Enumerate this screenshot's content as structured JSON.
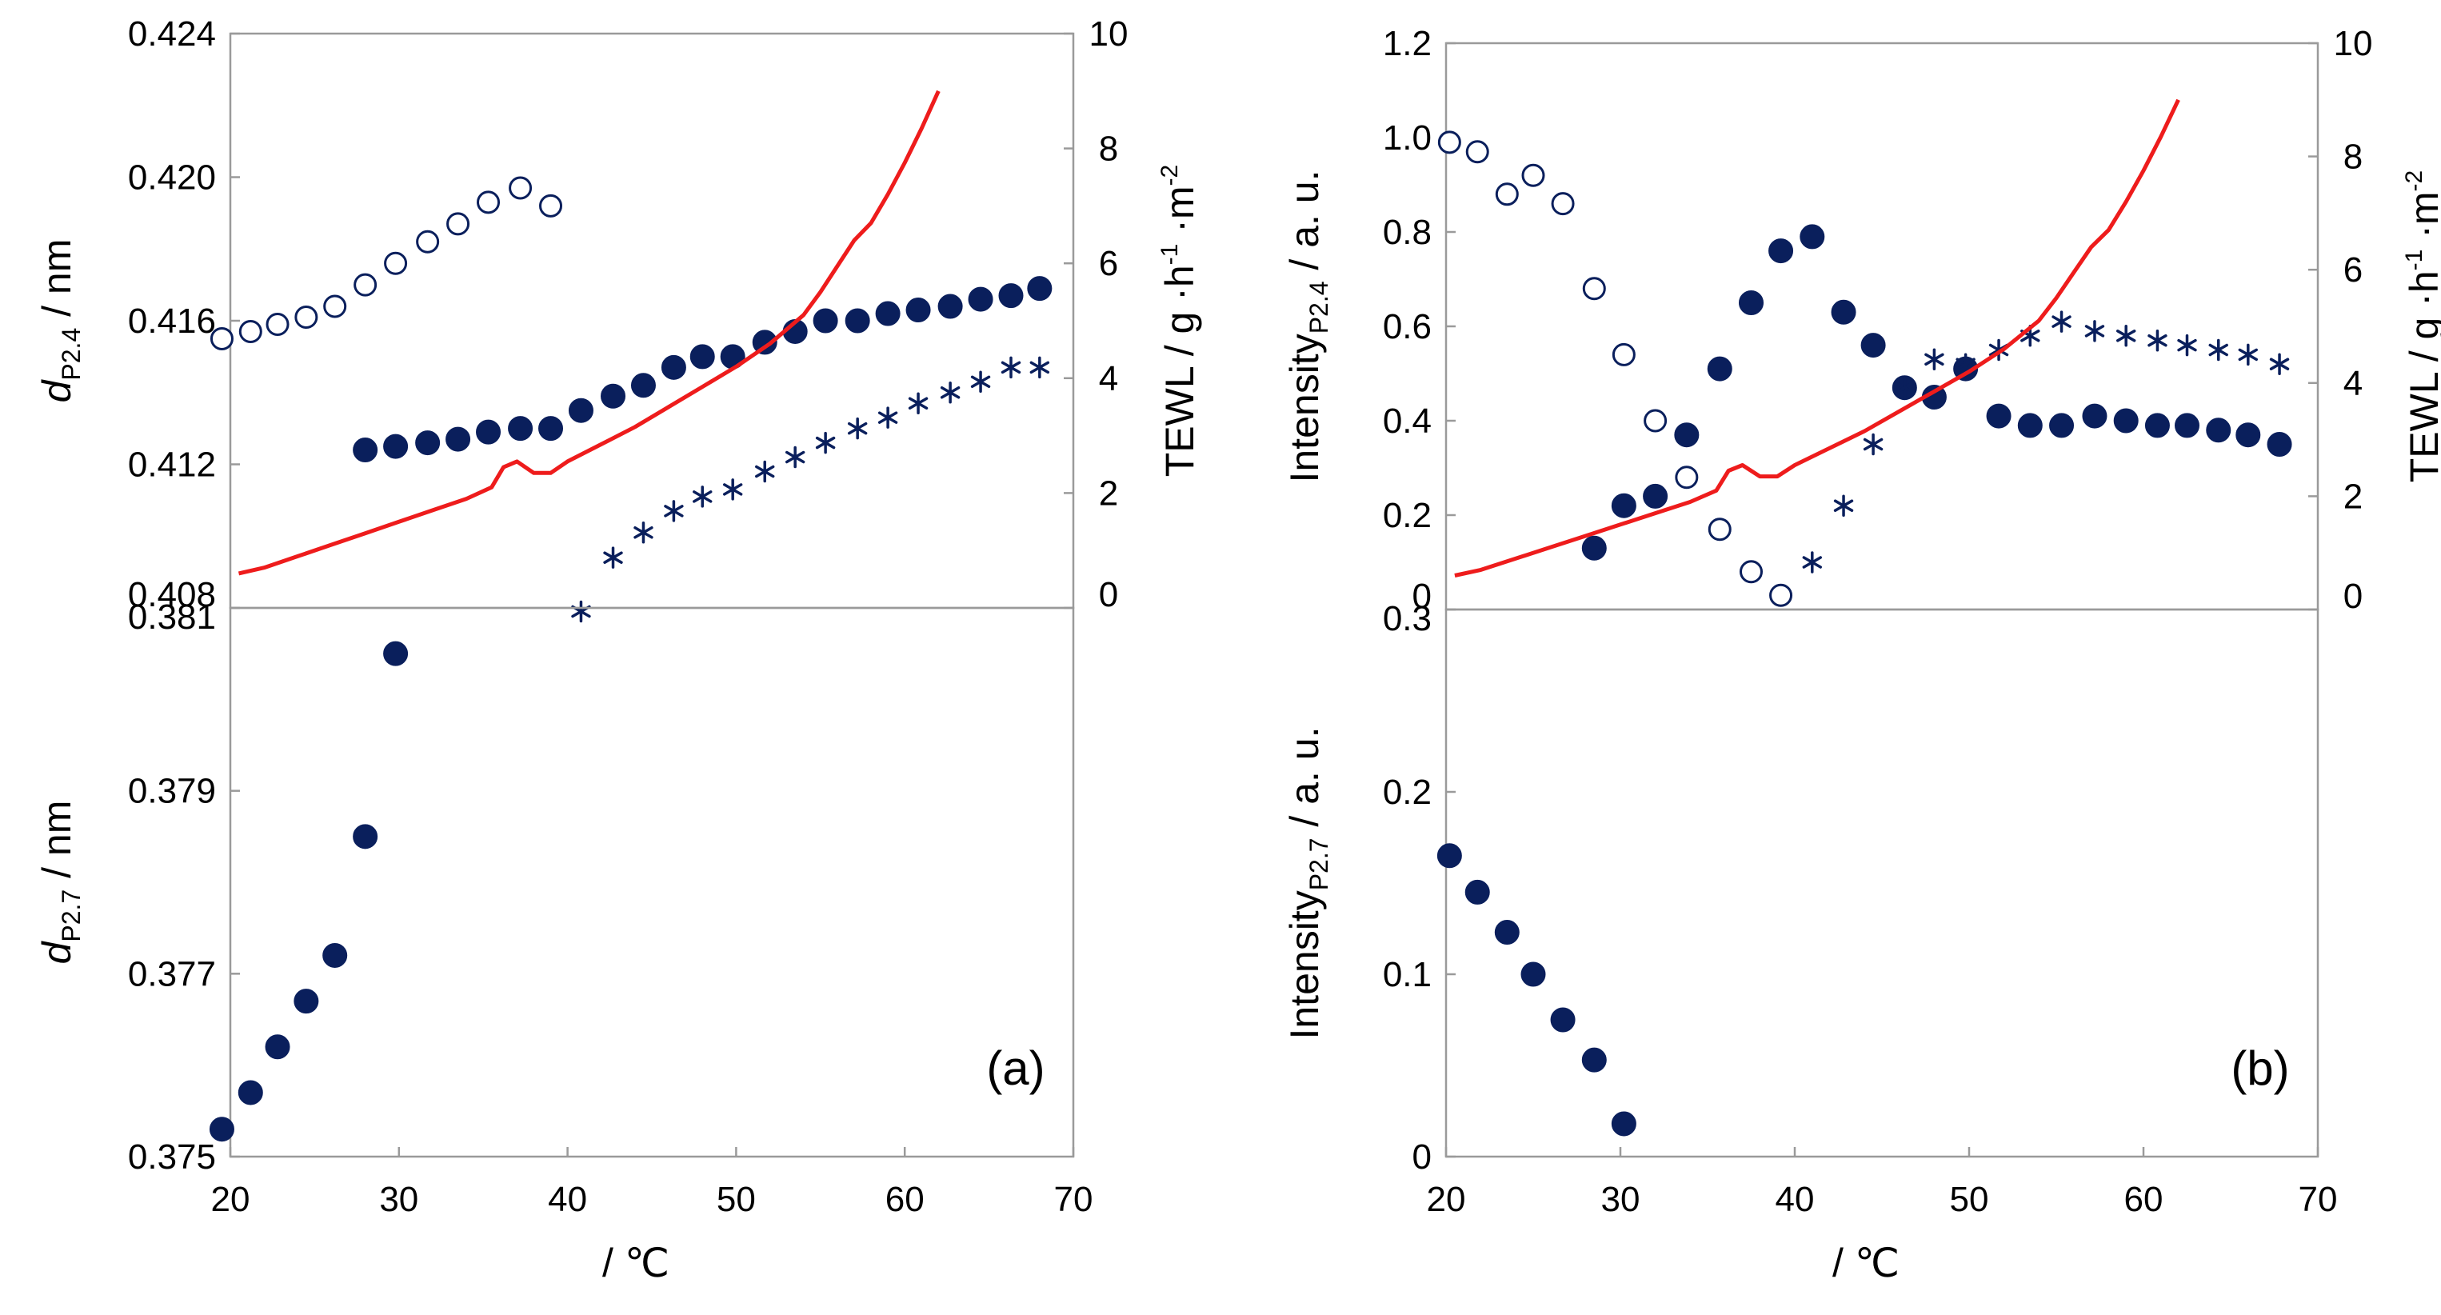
{
  "chart_data": [
    {
      "type": "scatter",
      "panel": "a-top",
      "xlim": [
        20,
        70
      ],
      "ylim": [
        0.408,
        0.424
      ],
      "y2lim": [
        0,
        10
      ],
      "yticks": [
        "0.408",
        "0.412",
        "0.416",
        "0.420",
        "0.424"
      ],
      "y2ticks": [
        "0",
        "2",
        "4",
        "6",
        "8",
        "10"
      ],
      "ylabel": {
        "base": "d",
        "sub": "P2.4",
        "rest": " / nm"
      },
      "y2label": {
        "t1": "TEWL / g ·h",
        "s1": "-1",
        "t2": " ·m",
        "s2": "-2"
      },
      "series": [
        {
          "name": "open_circles",
          "marker": "open-circle",
          "x": [
            19.5,
            21.2,
            22.8,
            24.5,
            26.2,
            28.0,
            29.8,
            31.7,
            33.5,
            35.3,
            37.2,
            39.0
          ],
          "y": [
            0.4155,
            0.4157,
            0.4159,
            0.4161,
            0.4164,
            0.417,
            0.4176,
            0.4182,
            0.4187,
            0.4193,
            0.4197,
            0.4192
          ]
        },
        {
          "name": "filled_circles",
          "marker": "filled-circle",
          "x": [
            28.0,
            29.8,
            31.7,
            33.5,
            35.3,
            37.2,
            39.0,
            40.8,
            42.7,
            44.5,
            46.3,
            48.0,
            49.8,
            51.7,
            53.5,
            55.3,
            57.2,
            59.0,
            60.8,
            62.7,
            64.5,
            66.3,
            68.0
          ],
          "y": [
            0.4124,
            0.4125,
            0.4126,
            0.4127,
            0.4129,
            0.413,
            0.413,
            0.4135,
            0.4139,
            0.4142,
            0.4147,
            0.415,
            0.415,
            0.4154,
            0.4157,
            0.416,
            0.416,
            0.4162,
            0.4163,
            0.4164,
            0.4166,
            0.4167,
            0.4169
          ]
        },
        {
          "name": "asterisks",
          "marker": "asterisk",
          "x": [
            40.8,
            42.7,
            44.5,
            46.3,
            48.0,
            49.8,
            51.7,
            53.5,
            55.3,
            57.2,
            59.0,
            60.8,
            62.7,
            64.5,
            66.3,
            68.0
          ],
          "y": [
            0.4079,
            0.4094,
            0.4101,
            0.4107,
            0.4111,
            0.4113,
            0.4118,
            0.4122,
            0.4126,
            0.413,
            0.4133,
            0.4137,
            0.414,
            0.4143,
            0.4147,
            0.4147
          ]
        },
        {
          "name": "TEWL",
          "marker": "line",
          "axis": "y2",
          "x": [
            20.5,
            22.0,
            24.0,
            26.0,
            28.0,
            30.0,
            32.0,
            34.0,
            35.5,
            36.2,
            37.0,
            38.0,
            39.0,
            40.0,
            42.0,
            44.0,
            46.0,
            48.0,
            50.0,
            52.0,
            54.0,
            55.0,
            56.0,
            57.0,
            58.0,
            59.0,
            60.0,
            61.0,
            62.0
          ],
          "y": [
            0.6,
            0.7,
            0.9,
            1.1,
            1.3,
            1.5,
            1.7,
            1.9,
            2.1,
            2.45,
            2.55,
            2.35,
            2.35,
            2.55,
            2.85,
            3.15,
            3.5,
            3.85,
            4.2,
            4.6,
            5.1,
            5.5,
            5.95,
            6.4,
            6.7,
            7.2,
            7.75,
            8.35,
            9.0
          ]
        }
      ]
    },
    {
      "type": "scatter",
      "panel": "a-bottom",
      "xlim": [
        20,
        70
      ],
      "ylim": [
        0.375,
        0.381
      ],
      "yticks": [
        "0.375",
        "0.377",
        "0.379",
        "0.381"
      ],
      "xticks": [
        "20",
        "30",
        "40",
        "50",
        "60",
        "70"
      ],
      "ylabel": {
        "base": "d",
        "sub": "P2.7",
        "rest": " / nm"
      },
      "xlabel": "/ ℃",
      "annotation": "(a)",
      "series": [
        {
          "name": "filled_circles",
          "marker": "filled-circle",
          "x": [
            19.5,
            21.2,
            22.8,
            24.5,
            26.2,
            28.0,
            29.8
          ],
          "y": [
            0.3753,
            0.3757,
            0.3762,
            0.3767,
            0.3772,
            0.3785,
            0.3805
          ]
        }
      ]
    },
    {
      "type": "scatter",
      "panel": "b-top",
      "xlim": [
        20,
        70
      ],
      "ylim": [
        0,
        1.2
      ],
      "y2lim": [
        0,
        10
      ],
      "yticks": [
        "0",
        "0.2",
        "0.4",
        "0.6",
        "0.8",
        "1.0",
        "1.2"
      ],
      "y2ticks": [
        "0",
        "2",
        "4",
        "6",
        "8",
        "10"
      ],
      "ylabel": {
        "base": "Intensity",
        "sub": "P2.4",
        "rest": " / a. u."
      },
      "y2label": {
        "t1": "TEWL / g ·h",
        "s1": "-1",
        "t2": " ·m",
        "s2": "-2"
      },
      "series": [
        {
          "name": "open_circles",
          "marker": "open-circle",
          "x": [
            20.2,
            21.8,
            23.5,
            25.0,
            26.7,
            28.5,
            30.2,
            32.0,
            33.8,
            35.7,
            37.5,
            39.2
          ],
          "y": [
            0.99,
            0.97,
            0.88,
            0.92,
            0.86,
            0.68,
            0.54,
            0.4,
            0.28,
            0.17,
            0.08,
            0.03
          ]
        },
        {
          "name": "filled_circles",
          "marker": "filled-circle",
          "x": [
            28.5,
            30.2,
            32.0,
            33.8,
            35.7,
            37.5,
            39.2,
            41.0,
            42.8,
            44.5,
            46.3,
            48.0,
            49.8,
            51.7,
            53.5,
            55.3,
            57.2,
            59.0,
            60.8,
            62.5,
            64.3,
            66.0,
            67.8
          ],
          "y": [
            0.13,
            0.22,
            0.24,
            0.37,
            0.51,
            0.65,
            0.76,
            0.79,
            0.63,
            0.56,
            0.47,
            0.45,
            0.51,
            0.41,
            0.39,
            0.39,
            0.41,
            0.4,
            0.39,
            0.39,
            0.38,
            0.37,
            0.35
          ]
        },
        {
          "name": "asterisks",
          "marker": "asterisk",
          "x": [
            41.0,
            42.8,
            44.5,
            46.3,
            48.0,
            49.8,
            51.7,
            53.5,
            55.3,
            57.2,
            59.0,
            60.8,
            62.5,
            64.3,
            66.0,
            67.8
          ],
          "y": [
            0.1,
            0.22,
            0.35,
            0.47,
            0.53,
            0.52,
            0.55,
            0.58,
            0.61,
            0.59,
            0.58,
            0.57,
            0.56,
            0.55,
            0.54,
            0.52
          ]
        },
        {
          "name": "TEWL",
          "marker": "line",
          "axis": "y2",
          "x": [
            20.5,
            22.0,
            24.0,
            26.0,
            28.0,
            30.0,
            32.0,
            34.0,
            35.5,
            36.2,
            37.0,
            38.0,
            39.0,
            40.0,
            42.0,
            44.0,
            46.0,
            48.0,
            50.0,
            52.0,
            54.0,
            55.0,
            56.0,
            57.0,
            58.0,
            59.0,
            60.0,
            61.0,
            62.0
          ],
          "y": [
            0.6,
            0.7,
            0.9,
            1.1,
            1.3,
            1.5,
            1.7,
            1.9,
            2.1,
            2.45,
            2.55,
            2.35,
            2.35,
            2.55,
            2.85,
            3.15,
            3.5,
            3.85,
            4.2,
            4.6,
            5.1,
            5.5,
            5.95,
            6.4,
            6.7,
            7.2,
            7.75,
            8.35,
            9.0
          ]
        }
      ]
    },
    {
      "type": "scatter",
      "panel": "b-bottom",
      "xlim": [
        20,
        70
      ],
      "ylim": [
        0,
        0.3
      ],
      "yticks": [
        "0",
        "0.1",
        "0.2",
        "0.3"
      ],
      "xticks": [
        "20",
        "30",
        "40",
        "50",
        "60",
        "70"
      ],
      "ylabel": {
        "base": "Intensity",
        "sub": "P2.7",
        "rest": " / a. u."
      },
      "xlabel": "/ ℃",
      "annotation": "(b)",
      "series": [
        {
          "name": "filled_circles",
          "marker": "filled-circle",
          "x": [
            20.2,
            21.8,
            23.5,
            25.0,
            26.7,
            28.5,
            30.2
          ],
          "y": [
            0.165,
            0.145,
            0.123,
            0.1,
            0.075,
            0.053,
            0.018
          ]
        }
      ]
    }
  ]
}
